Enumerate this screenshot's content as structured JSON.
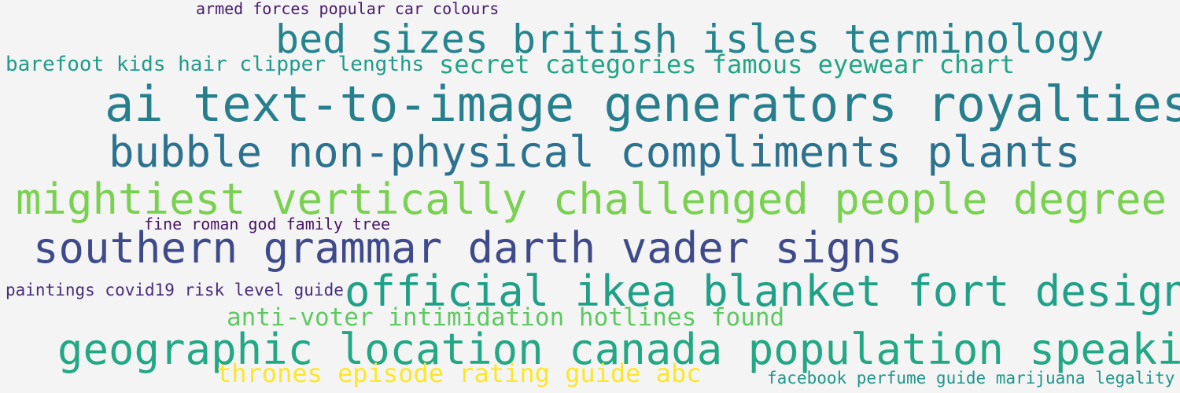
{
  "words": [
    {
      "text": "armed forces popular car colours",
      "color": "#481a6c"
    },
    {
      "text": "bed sizes british isles terminology",
      "color": "#25858e"
    },
    {
      "text": "barefoot kids hair clipper lengths",
      "color": "#1e9b8a"
    },
    {
      "text": "secret categories famous eyewear chart",
      "color": "#21a585"
    },
    {
      "text": "ai text-to-image generators royalties",
      "color": "#277f8e"
    },
    {
      "text": "bubble non-physical compliments plants",
      "color": "#2c728e"
    },
    {
      "text": "mightiest vertically challenged people degree",
      "color": "#7ad151"
    },
    {
      "text": "fine roman god family tree",
      "color": "#471365"
    },
    {
      "text": "southern grammar darth vader signs",
      "color": "#3e4a89"
    },
    {
      "text": "paintings covid19 risk level guide",
      "color": "#472d7b"
    },
    {
      "text": "official ikea blanket fort designs",
      "color": "#1fa187"
    },
    {
      "text": "anti-voter intimidation hotlines found",
      "color": "#5ec962"
    },
    {
      "text": "geographic location canada population speaking",
      "color": "#22a884"
    },
    {
      "text": "thrones episode rating guide abc",
      "color": "#fde725"
    },
    {
      "text": "facebook perfume guide marijuana legality",
      "color": "#1f968b"
    }
  ]
}
